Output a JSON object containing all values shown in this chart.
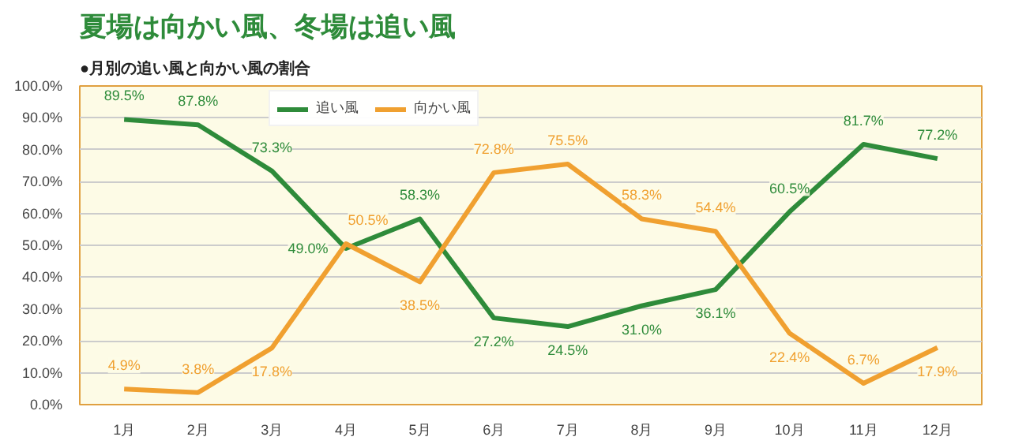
{
  "chart_data": {
    "type": "line",
    "title": "夏場は向かい風、冬場は追い風",
    "subtitle": "●月別の追い風と向かい風の割合",
    "categories": [
      "1月",
      "2月",
      "3月",
      "4月",
      "5月",
      "6月",
      "7月",
      "8月",
      "9月",
      "10月",
      "11月",
      "12月"
    ],
    "series": [
      {
        "name": "追い風",
        "color": "#2e8b3a",
        "values": [
          89.5,
          87.8,
          73.3,
          49.0,
          58.3,
          27.2,
          24.5,
          31.0,
          36.1,
          60.5,
          81.7,
          77.2
        ],
        "value_labels": [
          "89.5%",
          "87.8%",
          "73.3%",
          "49.0%",
          "58.3%",
          "27.2%",
          "24.5%",
          "31.0%",
          "36.1%",
          "60.5%",
          "81.7%",
          "77.2%"
        ]
      },
      {
        "name": "向かい風",
        "color": "#f0a030",
        "values": [
          4.9,
          3.8,
          17.8,
          50.5,
          38.5,
          72.8,
          75.5,
          58.3,
          54.4,
          22.4,
          6.7,
          17.9
        ],
        "value_labels": [
          "4.9%",
          "3.8%",
          "17.8%",
          "50.5%",
          "38.5%",
          "72.8%",
          "75.5%",
          "58.3%",
          "54.4%",
          "22.4%",
          "6.7%",
          "17.9%"
        ]
      }
    ],
    "ylim": [
      0,
      100
    ],
    "yticks": [
      {
        "value": 0,
        "label": "0.0%"
      },
      {
        "value": 10,
        "label": "10.0%"
      },
      {
        "value": 20,
        "label": "20.0%"
      },
      {
        "value": 30,
        "label": "30.0%"
      },
      {
        "value": 40,
        "label": "40.0%"
      },
      {
        "value": 50,
        "label": "50.0%"
      },
      {
        "value": 60,
        "label": "60.0%"
      },
      {
        "value": 70,
        "label": "70.0%"
      },
      {
        "value": 80,
        "label": "80.0%"
      },
      {
        "value": 90,
        "label": "90.0%"
      },
      {
        "value": 100,
        "label": "100.0%"
      }
    ],
    "grid": "y",
    "legend": "top",
    "marker": "none",
    "line_style": "solid"
  }
}
